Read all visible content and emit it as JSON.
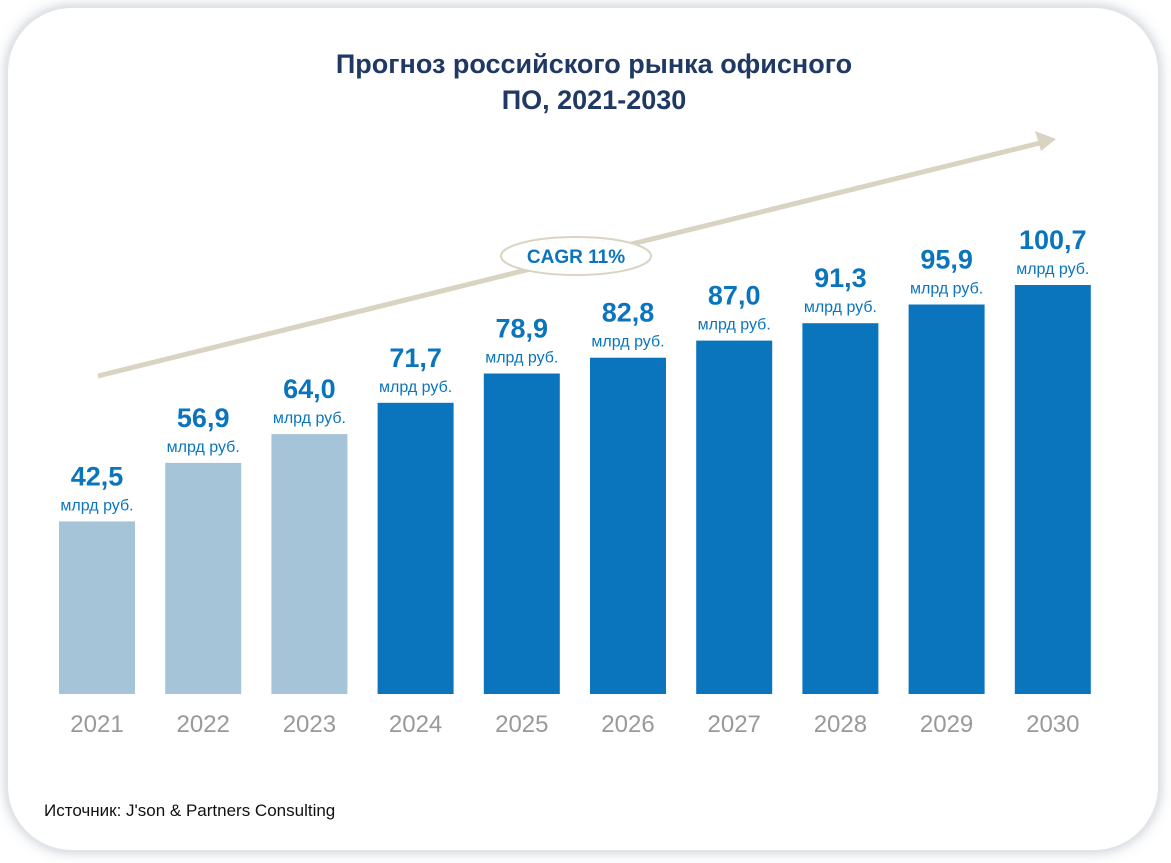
{
  "chart_data": {
    "type": "bar",
    "title": "Прогноз российского рынка офисного ПО, 2021-2030",
    "title_lines": [
      "Прогноз российского рынка офисного",
      "ПО, 2021-2030"
    ],
    "categories": [
      "2021",
      "2022",
      "2023",
      "2024",
      "2025",
      "2026",
      "2027",
      "2028",
      "2029",
      "2030"
    ],
    "values": [
      42.5,
      56.9,
      64.0,
      71.7,
      78.9,
      82.8,
      87.0,
      91.3,
      95.9,
      100.7
    ],
    "value_labels": [
      "42,5",
      "56,9",
      "64,0",
      "71,7",
      "78,9",
      "82,8",
      "87,0",
      "91,3",
      "95,9",
      "100,7"
    ],
    "unit_label": "млрд руб.",
    "xlabel": "",
    "ylabel": "",
    "ylim": [
      0,
      100.7
    ],
    "grid": false,
    "bar_colors": [
      "#a5c4d7",
      "#a5c4d7",
      "#a5c4d7",
      "#0a75bd",
      "#0a75bd",
      "#0a75bd",
      "#0a75bd",
      "#0a75bd",
      "#0a75bd",
      "#0a75bd"
    ],
    "value_label_color": "#0a75bd",
    "tick_label_color": "#999999",
    "annotation": "CAGR 11%",
    "trend_arrow_color": "#d9d4c2"
  },
  "source_text": "Источник: J'son & Partners Consulting"
}
